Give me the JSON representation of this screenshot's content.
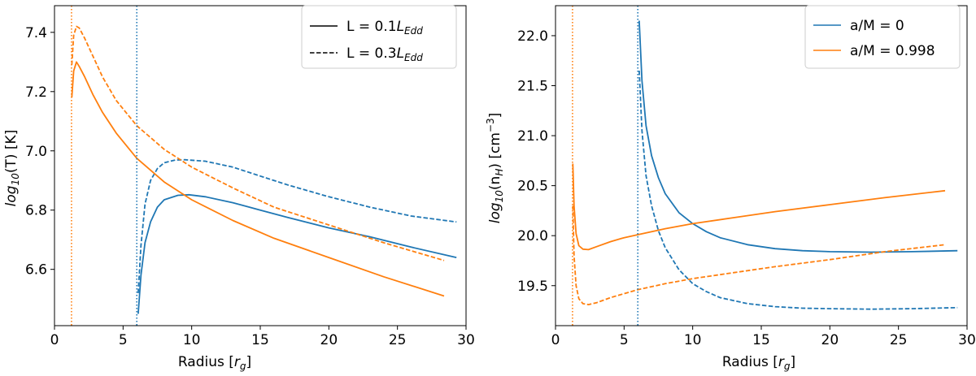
{
  "colors": {
    "blue": "#1f77b4",
    "orange": "#ff7f0e",
    "legend_black": "#000000"
  },
  "chart_data": [
    {
      "type": "line",
      "xlabel": "Radius [r_g]",
      "xlabel_main": "Radius [",
      "xlabel_var": "r",
      "xlabel_sub": "g",
      "xlabel_end": "]",
      "ylabel_main": "log",
      "ylabel_sub": "10",
      "ylabel_rest": "(T) [K]",
      "xlim": [
        0,
        30
      ],
      "ylim": [
        6.41,
        7.49
      ],
      "xticks": [
        0,
        5,
        10,
        15,
        20,
        25,
        30
      ],
      "yticks": [
        6.6,
        6.8,
        7.0,
        7.2,
        7.4
      ],
      "xtick_labels": [
        "0",
        "5",
        "10",
        "15",
        "20",
        "25",
        "30"
      ],
      "ytick_labels": [
        "6.6",
        "6.8",
        "7.0",
        "7.2",
        "7.4"
      ],
      "vlines": [
        {
          "x": 1.24,
          "color": "orange",
          "style": "dotted"
        },
        {
          "x": 6.0,
          "color": "blue",
          "style": "dotted"
        }
      ],
      "legend": {
        "position": "upper right",
        "entries": [
          {
            "label_main": "L = 0.1",
            "label_var": "L",
            "label_sub": "Edd",
            "linestyle": "solid"
          },
          {
            "label_main": "L = 0.3",
            "label_var": "L",
            "label_sub": "Edd",
            "linestyle": "dashed"
          }
        ]
      },
      "series": [
        {
          "name": "a/M = 0, L = 0.1 L_Edd",
          "color": "blue",
          "linestyle": "solid",
          "x": [
            6.1,
            6.3,
            6.6,
            7.0,
            7.5,
            8.0,
            9.0,
            9.8,
            11,
            13,
            15,
            17,
            20,
            23,
            26,
            29.3
          ],
          "y": [
            6.45,
            6.58,
            6.69,
            6.76,
            6.81,
            6.835,
            6.85,
            6.852,
            6.845,
            6.825,
            6.8,
            6.775,
            6.74,
            6.71,
            6.675,
            6.64
          ]
        },
        {
          "name": "a/M = 0, L = 0.3 L_Edd",
          "color": "blue",
          "linestyle": "dashed",
          "x": [
            6.1,
            6.3,
            6.6,
            7.0,
            7.5,
            8.0,
            8.8,
            9.5,
            11,
            13,
            15,
            17,
            20,
            23,
            26,
            29.3
          ],
          "y": [
            6.52,
            6.68,
            6.82,
            6.9,
            6.94,
            6.96,
            6.969,
            6.97,
            6.965,
            6.945,
            6.915,
            6.885,
            6.845,
            6.81,
            6.78,
            6.76
          ]
        },
        {
          "name": "a/M = 0.998, L = 0.1 L_Edd",
          "color": "orange",
          "linestyle": "solid",
          "x": [
            1.26,
            1.4,
            1.6,
            1.8,
            2.2,
            2.8,
            3.5,
            4.5,
            6,
            8,
            10,
            13,
            16,
            20,
            24,
            28.4
          ],
          "y": [
            7.18,
            7.27,
            7.3,
            7.285,
            7.25,
            7.19,
            7.13,
            7.06,
            6.975,
            6.895,
            6.835,
            6.765,
            6.705,
            6.64,
            6.575,
            6.51
          ]
        },
        {
          "name": "a/M = 0.998, L = 0.3 L_Edd",
          "color": "orange",
          "linestyle": "dashed",
          "x": [
            1.26,
            1.4,
            1.6,
            1.8,
            2.2,
            2.8,
            3.5,
            4.5,
            6,
            8,
            10,
            13,
            16,
            20,
            24,
            28.4
          ],
          "y": [
            7.29,
            7.39,
            7.42,
            7.415,
            7.38,
            7.32,
            7.25,
            7.17,
            7.085,
            7.005,
            6.945,
            6.875,
            6.81,
            6.75,
            6.69,
            6.63
          ]
        }
      ]
    },
    {
      "type": "line",
      "xlabel": "Radius [r_g]",
      "xlabel_main": "Radius [",
      "xlabel_var": "r",
      "xlabel_sub": "g",
      "xlabel_end": "]",
      "ylabel_main": "log",
      "ylabel_sub": "10",
      "ylabel_mid": "(n",
      "ylabel_sub2": "H",
      "ylabel_rest": ") [cm",
      "ylabel_sup": "−3",
      "ylabel_end": "]",
      "xlim": [
        0,
        30
      ],
      "ylim": [
        19.1,
        22.3
      ],
      "xticks": [
        0,
        5,
        10,
        15,
        20,
        25,
        30
      ],
      "yticks": [
        19.5,
        20.0,
        20.5,
        21.0,
        21.5,
        22.0
      ],
      "xtick_labels": [
        "0",
        "5",
        "10",
        "15",
        "20",
        "25",
        "30"
      ],
      "ytick_labels": [
        "19.5",
        "20.0",
        "20.5",
        "21.0",
        "21.5",
        "22.0"
      ],
      "vlines": [
        {
          "x": 1.24,
          "color": "orange",
          "style": "dotted"
        },
        {
          "x": 6.0,
          "color": "blue",
          "style": "dotted"
        }
      ],
      "legend": {
        "position": "upper right",
        "entries": [
          {
            "label": "a/M = 0",
            "color": "blue"
          },
          {
            "label": "a/M = 0.998",
            "color": "orange"
          }
        ]
      },
      "series": [
        {
          "name": "a/M = 0, L = 0.1 L_Edd",
          "color": "blue",
          "linestyle": "solid",
          "x": [
            6.1,
            6.3,
            6.6,
            7.0,
            7.5,
            8,
            9,
            10,
            11,
            12,
            14,
            16,
            18,
            20,
            23,
            26,
            29.3
          ],
          "y": [
            22.15,
            21.55,
            21.1,
            20.8,
            20.58,
            20.42,
            20.23,
            20.12,
            20.04,
            19.98,
            19.91,
            19.87,
            19.85,
            19.84,
            19.835,
            19.84,
            19.85
          ]
        },
        {
          "name": "a/M = 0, L = 0.3 L_Edd",
          "color": "blue",
          "linestyle": "dashed",
          "x": [
            6.1,
            6.3,
            6.6,
            7.0,
            7.5,
            8,
            9,
            10,
            11,
            12,
            14,
            16,
            18,
            20,
            23,
            26,
            29.3
          ],
          "y": [
            21.65,
            21.05,
            20.6,
            20.3,
            20.05,
            19.88,
            19.66,
            19.52,
            19.44,
            19.38,
            19.32,
            19.29,
            19.275,
            19.27,
            19.265,
            19.27,
            19.28
          ]
        },
        {
          "name": "a/M = 0.998, L = 0.1 L_Edd",
          "color": "orange",
          "linestyle": "solid",
          "x": [
            1.26,
            1.35,
            1.5,
            1.7,
            2.0,
            2.4,
            3.0,
            4,
            5,
            6,
            8,
            10,
            13,
            16,
            20,
            24,
            28.4
          ],
          "y": [
            20.72,
            20.3,
            20.02,
            19.9,
            19.865,
            19.86,
            19.89,
            19.94,
            19.98,
            20.01,
            20.07,
            20.12,
            20.18,
            20.24,
            20.31,
            20.38,
            20.45
          ]
        },
        {
          "name": "a/M = 0.998, L = 0.3 L_Edd",
          "color": "orange",
          "linestyle": "dashed",
          "x": [
            1.26,
            1.35,
            1.5,
            1.7,
            2.0,
            2.4,
            3.0,
            4,
            5,
            6,
            8,
            10,
            13,
            16,
            20,
            24,
            28.4
          ],
          "y": [
            20.3,
            19.8,
            19.5,
            19.37,
            19.32,
            19.31,
            19.33,
            19.38,
            19.42,
            19.46,
            19.52,
            19.57,
            19.63,
            19.69,
            19.76,
            19.84,
            19.91
          ]
        }
      ]
    }
  ]
}
